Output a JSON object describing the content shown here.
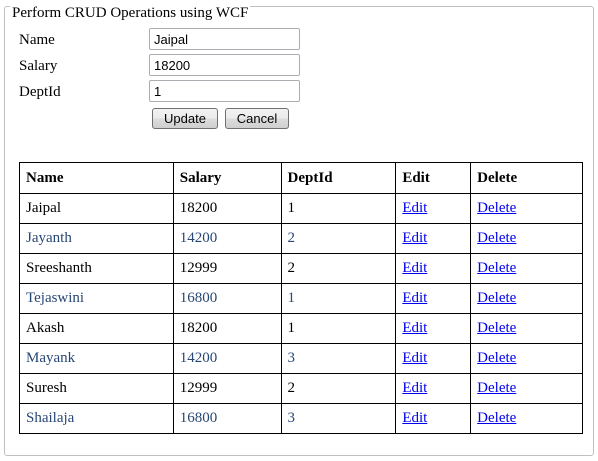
{
  "form": {
    "legend": "Perform CRUD Operations using WCF",
    "name_label": "Name",
    "salary_label": "Salary",
    "deptid_label": "DeptId",
    "name_value": "Jaipal",
    "salary_value": "18200",
    "deptid_value": "1",
    "update_label": "Update",
    "cancel_label": "Cancel"
  },
  "grid": {
    "headers": [
      "Name",
      "Salary",
      "DeptId",
      "Edit",
      "Delete"
    ],
    "rows": [
      {
        "name": "Jaipal",
        "salary": "18200",
        "deptid": "1",
        "edit": "Edit",
        "delete": "Delete"
      },
      {
        "name": "Jayanth",
        "salary": "14200",
        "deptid": "2",
        "edit": "Edit",
        "delete": "Delete"
      },
      {
        "name": "Sreeshanth",
        "salary": "12999",
        "deptid": "2",
        "edit": "Edit",
        "delete": "Delete"
      },
      {
        "name": "Tejaswini",
        "salary": "16800",
        "deptid": "1",
        "edit": "Edit",
        "delete": "Delete"
      },
      {
        "name": "Akash",
        "salary": "18200",
        "deptid": "1",
        "edit": "Edit",
        "delete": "Delete"
      },
      {
        "name": "Mayank",
        "salary": "14200",
        "deptid": "3",
        "edit": "Edit",
        "delete": "Delete"
      },
      {
        "name": "Suresh",
        "salary": "12999",
        "deptid": "2",
        "edit": "Edit",
        "delete": "Delete"
      },
      {
        "name": "Shailaja",
        "salary": "16800",
        "deptid": "3",
        "edit": "Edit",
        "delete": "Delete"
      }
    ]
  },
  "colors": {
    "alt_row_text": "#284775",
    "link": "#0000ee"
  }
}
